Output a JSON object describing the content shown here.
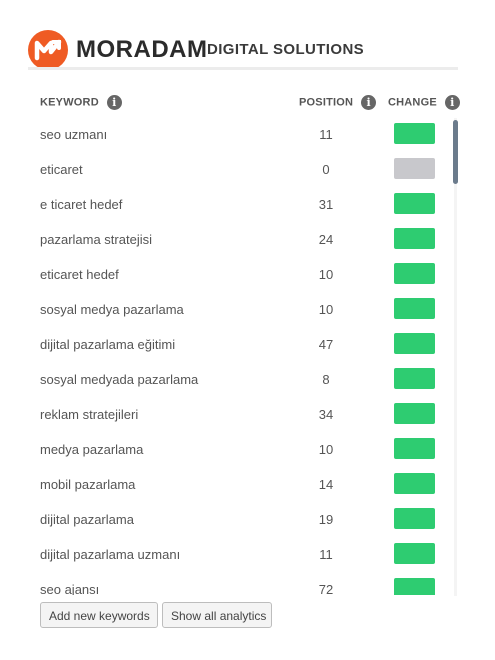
{
  "brand": {
    "name": "MORADAM",
    "subtitle": "DIGITAL SOLUTIONS",
    "color": "#ef5b24",
    "logo_icon": "moradam-logo-icon"
  },
  "columns": {
    "keyword": "KEYWORD",
    "position": "POSITION",
    "change": "CHANGE",
    "info_icon": "info-icon"
  },
  "rows": [
    {
      "keyword": "seo uzmanı",
      "position": "11",
      "change": "positive"
    },
    {
      "keyword": "eticaret",
      "position": "0",
      "change": "neutral"
    },
    {
      "keyword": "e ticaret hedef",
      "position": "31",
      "change": "positive"
    },
    {
      "keyword": "pazarlama stratejisi",
      "position": "24",
      "change": "positive"
    },
    {
      "keyword": "eticaret hedef",
      "position": "10",
      "change": "positive"
    },
    {
      "keyword": "sosyal medya pazarlama",
      "position": "10",
      "change": "positive"
    },
    {
      "keyword": "dijital pazarlama eğitimi",
      "position": "47",
      "change": "positive"
    },
    {
      "keyword": "sosyal medyada pazarlama",
      "position": "8",
      "change": "positive"
    },
    {
      "keyword": "reklam stratejileri",
      "position": "34",
      "change": "positive"
    },
    {
      "keyword": "medya pazarlama",
      "position": "10",
      "change": "positive"
    },
    {
      "keyword": "mobil pazarlama",
      "position": "14",
      "change": "positive"
    },
    {
      "keyword": "dijital pazarlama",
      "position": "19",
      "change": "positive"
    },
    {
      "keyword": "dijital pazarlama uzmanı",
      "position": "11",
      "change": "positive"
    },
    {
      "keyword": "seo ajansı",
      "position": "72",
      "change": "positive"
    }
  ],
  "change_colors": {
    "positive": "#2ecc71",
    "neutral": "#c8c8cc"
  },
  "buttons": {
    "add_keywords": "Add new keywords",
    "show_analytics": "Show all analytics"
  }
}
